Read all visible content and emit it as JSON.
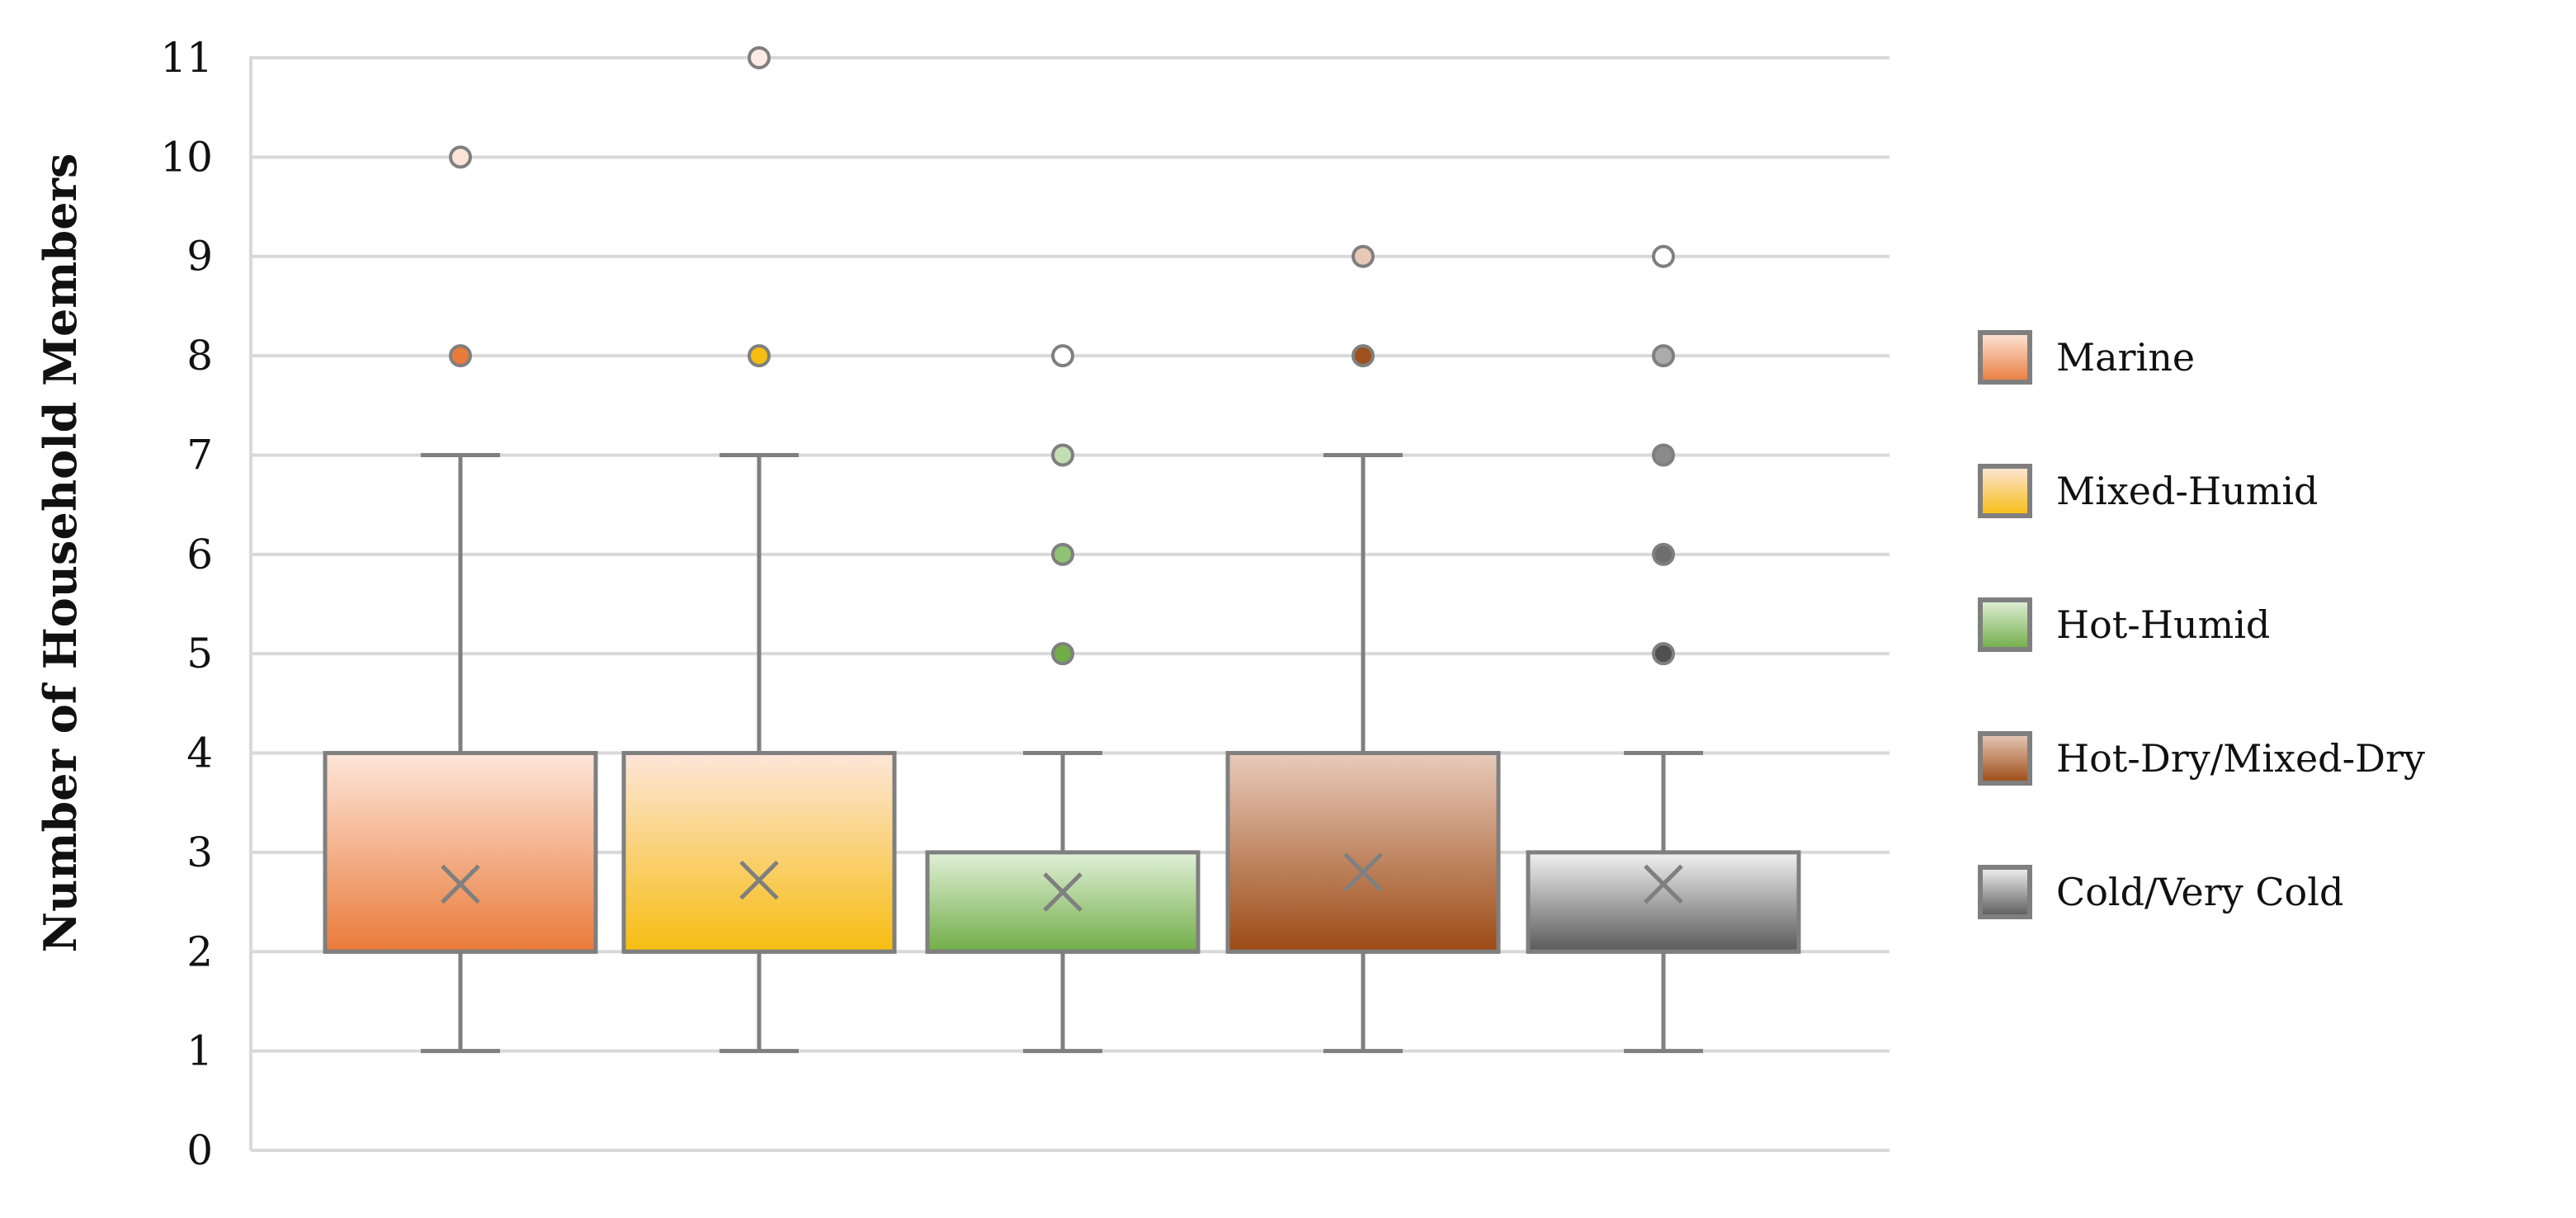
{
  "chart_data": {
    "type": "box",
    "title": "",
    "xlabel": "",
    "ylabel": "Number of Household Members",
    "ylim": [
      0,
      11
    ],
    "yticks": [
      0,
      1,
      2,
      3,
      4,
      5,
      6,
      7,
      8,
      9,
      10,
      11
    ],
    "grid": true,
    "legend_position": "right",
    "series": [
      {
        "name": "Marine",
        "min": 1,
        "q1": 2,
        "median": 2,
        "q3": 4,
        "max": 7,
        "mean": 2.68,
        "outliers": [
          8,
          10
        ],
        "color_top": "#fde6da",
        "color_bottom": "#e97b3a",
        "outlier_colors": [
          "#e97b3a",
          "#fbe3d8"
        ]
      },
      {
        "name": "Mixed-Humid",
        "min": 1,
        "q1": 2,
        "median": 2,
        "q3": 4,
        "max": 7,
        "mean": 2.72,
        "outliers": [
          8,
          11
        ],
        "color_top": "#fde6da",
        "color_bottom": "#f7bd10",
        "outlier_colors": [
          "#f7bd10",
          "#fdebe3"
        ]
      },
      {
        "name": "Hot-Humid",
        "min": 1,
        "q1": 2,
        "median": 2,
        "q3": 3,
        "max": 4,
        "mean": 2.6,
        "outliers": [
          5,
          6,
          7,
          8
        ],
        "color_top": "#e2f0d9",
        "color_bottom": "#70ad47",
        "outlier_colors": [
          "#70ad47",
          "#8fc272",
          "#c4deb4",
          "#ffffff"
        ]
      },
      {
        "name": "Hot-Dry/Mixed-Dry",
        "min": 1,
        "q1": 2,
        "median": 2,
        "q3": 4,
        "max": 7,
        "mean": 2.8,
        "outliers": [
          8,
          9
        ],
        "color_top": "#e8cbbb",
        "color_bottom": "#9c4a14",
        "outlier_colors": [
          "#a0501c",
          "#e8c8b8"
        ]
      },
      {
        "name": "Cold/Very Cold",
        "min": 1,
        "q1": 2,
        "median": 2,
        "q3": 3,
        "max": 4,
        "mean": 2.68,
        "outliers": [
          5,
          6,
          7,
          8,
          9
        ],
        "color_top": "#f2f2f2",
        "color_bottom": "#595959",
        "outlier_colors": [
          "#505050",
          "#6e6e6e",
          "#8a8a8a",
          "#ababab",
          "#ffffff"
        ]
      }
    ]
  }
}
